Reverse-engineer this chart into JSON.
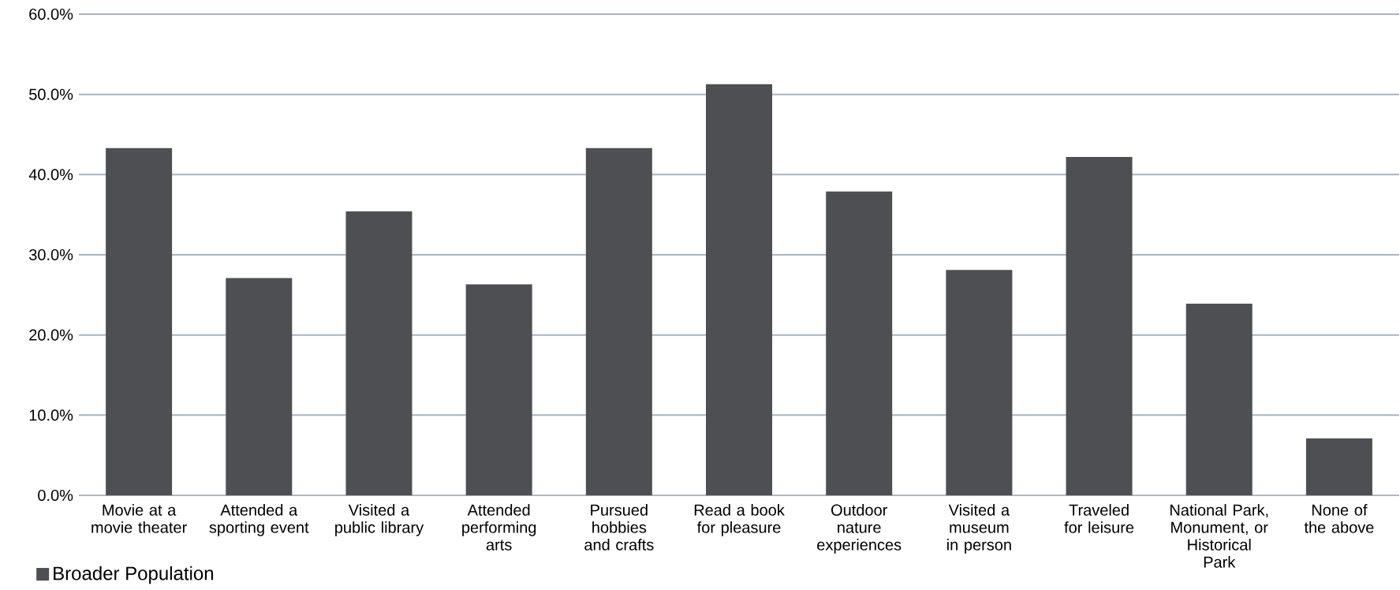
{
  "chart_data": {
    "type": "bar",
    "categories": [
      "Movie at a movie theater",
      "Attended a sporting event",
      "Visited a public library",
      "Attended performing arts",
      "Pursued hobbies and crafts",
      "Read a book for pleasure",
      "Outdoor nature experiences",
      "Visited a museum in person",
      "Traveled for leisure",
      "National Park, Monument, or Historical Park",
      "None of the above"
    ],
    "series": [
      {
        "name": "Broader Population",
        "color": "#4d4f53",
        "values": [
          43.3,
          27.1,
          35.4,
          26.3,
          43.3,
          51.3,
          37.9,
          28.1,
          42.2,
          23.9,
          7.1
        ]
      }
    ],
    "ylim": [
      0,
      60
    ],
    "yticks": [
      {
        "value": 0,
        "label": "0.0%"
      },
      {
        "value": 10,
        "label": "10.0%"
      },
      {
        "value": 20,
        "label": "20.0%"
      },
      {
        "value": 30,
        "label": "30.0%"
      },
      {
        "value": 40,
        "label": "40.0%"
      },
      {
        "value": 50,
        "label": "50.0%"
      },
      {
        "value": 60,
        "label": "60.0%"
      }
    ],
    "grid": "y",
    "legend": "bottom left"
  }
}
